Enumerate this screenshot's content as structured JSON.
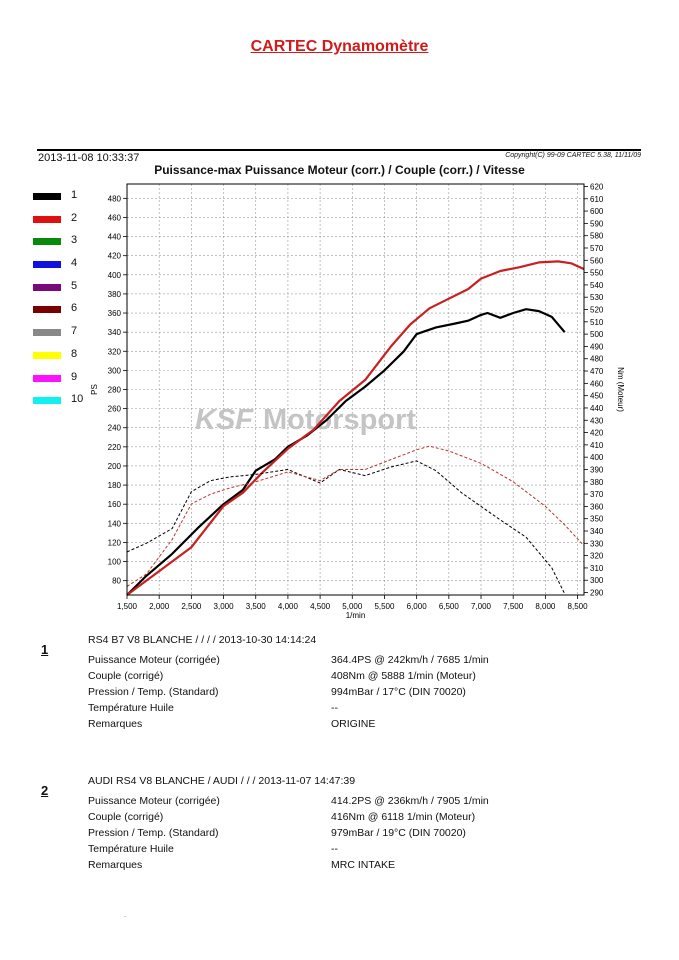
{
  "title": "CARTEC Dynamomètre",
  "header": {
    "date": "2013-11-08 10:33:37",
    "copyright": "Copyright(C) 99-09 CARTEC 5.38, 11/11/09",
    "subtitle": "Puissance-max Puissance Moteur (corr.) / Couple (corr.) / Vitesse"
  },
  "legend": [
    {
      "label": "1",
      "color": "#000000"
    },
    {
      "label": "2",
      "color": "#e01010"
    },
    {
      "label": "3",
      "color": "#0a8a0a"
    },
    {
      "label": "4",
      "color": "#1010e0"
    },
    {
      "label": "5",
      "color": "#7a0a7a"
    },
    {
      "label": "6",
      "color": "#7a0000"
    },
    {
      "label": "7",
      "color": "#888888"
    },
    {
      "label": "8",
      "color": "#ffff00"
    },
    {
      "label": "9",
      "color": "#ff10ff"
    },
    {
      "label": "10",
      "color": "#10f0f0"
    }
  ],
  "watermark": {
    "part1": "KSF",
    "part2": "Motorsport"
  },
  "chart_data": {
    "type": "line",
    "xlabel": "1/min",
    "ylabel_left": "PS",
    "ylabel_right": "Nm (Moteur)",
    "xlim": [
      1500,
      8600
    ],
    "ylim_left": [
      65,
      495
    ],
    "ylim_right": [
      288,
      622
    ],
    "x_ticks": [
      1500,
      2000,
      2500,
      3000,
      3500,
      4000,
      4500,
      5000,
      5500,
      6000,
      6500,
      7000,
      7500,
      8000,
      8500
    ],
    "x_tick_labels": [
      "1,500",
      "2,000",
      "2,500",
      "3,000",
      "3,500",
      "4,000",
      "4,500",
      "5,000",
      "5,500",
      "6,000",
      "6,500",
      "7,000",
      "7,500",
      "8,000",
      "8,500"
    ],
    "y_left_ticks": [
      80,
      100,
      120,
      140,
      160,
      180,
      200,
      220,
      240,
      260,
      280,
      300,
      320,
      340,
      360,
      380,
      400,
      420,
      440,
      460,
      480
    ],
    "y_right_ticks": [
      290,
      300,
      310,
      320,
      330,
      340,
      350,
      360,
      370,
      380,
      390,
      400,
      410,
      420,
      430,
      440,
      450,
      460,
      470,
      480,
      490,
      500,
      510,
      520,
      530,
      540,
      550,
      560,
      570,
      580,
      590,
      600,
      610,
      620
    ],
    "grid": true,
    "series": [
      {
        "name": "1",
        "axis": "left",
        "style": "solid",
        "color": "#000000",
        "x": [
          1500,
          1800,
          2200,
          2600,
          3000,
          3300,
          3500,
          3800,
          4000,
          4300,
          4600,
          4900,
          5200,
          5500,
          5800,
          6000,
          6300,
          6600,
          6800,
          7000,
          7100,
          7300,
          7500,
          7700,
          7900,
          8100,
          8300
        ],
        "y": [
          65,
          85,
          108,
          135,
          160,
          175,
          195,
          207,
          220,
          232,
          248,
          268,
          283,
          300,
          320,
          338,
          345,
          349,
          352,
          358,
          360,
          355,
          360,
          364,
          362,
          356,
          340
        ]
      },
      {
        "name": "2",
        "axis": "left",
        "style": "solid",
        "color": "#c82020",
        "x": [
          1500,
          2000,
          2500,
          3000,
          3300,
          3600,
          4000,
          4400,
          4800,
          5200,
          5600,
          5900,
          6200,
          6500,
          6800,
          7000,
          7300,
          7600,
          7900,
          8200,
          8400,
          8600
        ],
        "y": [
          65,
          90,
          115,
          158,
          172,
          193,
          218,
          238,
          268,
          290,
          325,
          348,
          365,
          375,
          385,
          396,
          404,
          408,
          413,
          414,
          412,
          406
        ]
      },
      {
        "name": "1",
        "axis": "right",
        "style": "dashed",
        "color": "#000000",
        "x": [
          1500,
          1800,
          2200,
          2500,
          2800,
          3100,
          3500,
          4000,
          4500,
          4800,
          5200,
          5600,
          6000,
          6300,
          6700,
          7000,
          7300,
          7700,
          8100,
          8300
        ],
        "y": [
          323,
          330,
          342,
          372,
          381,
          384,
          386,
          390,
          379,
          390,
          385,
          392,
          397,
          389,
          371,
          360,
          349,
          335,
          310,
          289
        ]
      },
      {
        "name": "2",
        "axis": "right",
        "style": "dashed",
        "color": "#c03030",
        "x": [
          1500,
          1800,
          2200,
          2500,
          2800,
          3100,
          3500,
          4000,
          4500,
          4800,
          5200,
          5600,
          6000,
          6200,
          6500,
          7000,
          7500,
          8000,
          8300,
          8600
        ],
        "y": [
          295,
          305,
          333,
          362,
          370,
          375,
          380,
          388,
          381,
          390,
          390,
          398,
          406,
          409,
          405,
          395,
          380,
          360,
          345,
          328
        ]
      }
    ]
  },
  "runs": [
    {
      "number": "1",
      "header": "RS4 B7 V8 BLANCHE /  /  /  / 2013-10-30 14:14:24",
      "rows": [
        {
          "label": "Puissance Moteur (corrigée)",
          "value": "364.4PS @ 242km/h / 7685 1/min"
        },
        {
          "label": "Couple (corrigé)",
          "value": "408Nm @ 5888 1/min (Moteur)"
        },
        {
          "label": "Pression / Temp. (Standard)",
          "value": "994mBar / 17°C    (DIN 70020)"
        },
        {
          "label": "Température Huile",
          "value": "--"
        },
        {
          "label": "Remarques",
          "value": "ORIGINE"
        }
      ]
    },
    {
      "number": "2",
      "header": "AUDI RS4 V8 BLANCHE / AUDI /  /  / 2013-11-07 14:47:39",
      "rows": [
        {
          "label": "Puissance Moteur (corrigée)",
          "value": "414.2PS @ 236km/h / 7905 1/min"
        },
        {
          "label": "Couple (corrigé)",
          "value": "416Nm @ 6118 1/min (Moteur)"
        },
        {
          "label": "Pression / Temp. (Standard)",
          "value": "979mBar / 19°C    (DIN 70020)"
        },
        {
          "label": "Température Huile",
          "value": "--"
        },
        {
          "label": "Remarques",
          "value": "MRC INTAKE"
        }
      ]
    }
  ]
}
